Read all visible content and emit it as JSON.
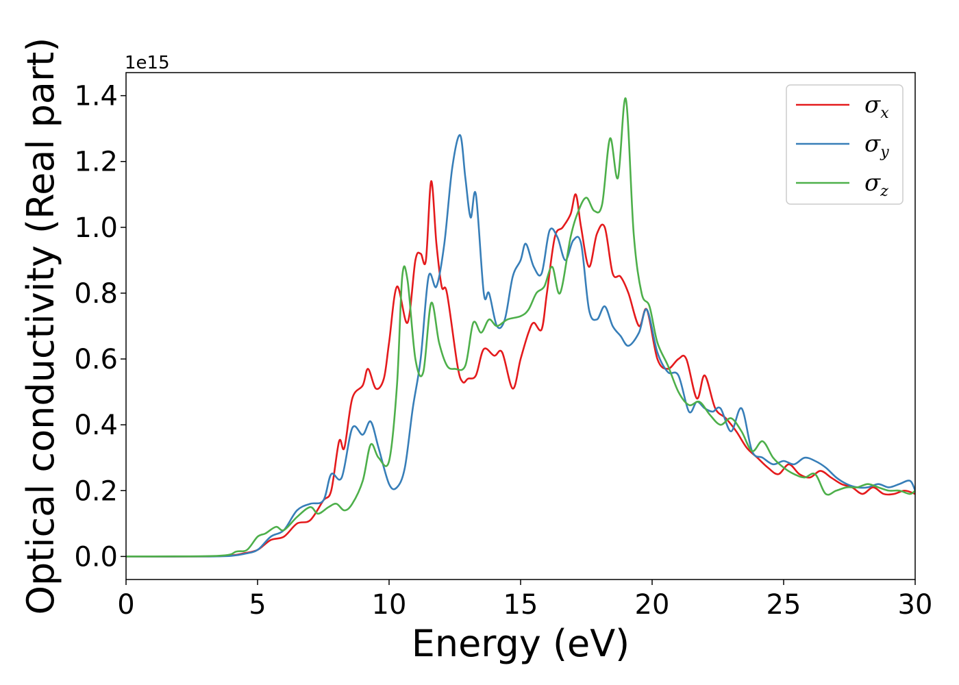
{
  "chart_data": {
    "type": "line",
    "xlabel": "Energy (eV)",
    "ylabel": "Optical conductivity (Real part)",
    "y_offset_label": "1e15",
    "xlim": [
      0,
      30
    ],
    "ylim": [
      -0.07,
      1.47
    ],
    "xticks": [
      0,
      5,
      10,
      15,
      20,
      25,
      30
    ],
    "xtick_labels": [
      "0",
      "5",
      "10",
      "15",
      "20",
      "25",
      "30"
    ],
    "yticks": [
      0.0,
      0.2,
      0.4,
      0.6,
      0.8,
      1.0,
      1.2,
      1.4
    ],
    "ytick_labels": [
      "0.0",
      "0.2",
      "0.4",
      "0.6",
      "0.8",
      "1.0",
      "1.2",
      "1.4"
    ],
    "grid": false,
    "legend_position": "top-right",
    "series": [
      {
        "name": "σx",
        "label_base": "σ",
        "label_sub": "x",
        "color": "#e41a1c",
        "points": [
          [
            0,
            0
          ],
          [
            3,
            0
          ],
          [
            4,
            0.003
          ],
          [
            4.5,
            0.01
          ],
          [
            5,
            0.02
          ],
          [
            5.5,
            0.05
          ],
          [
            6,
            0.06
          ],
          [
            6.5,
            0.1
          ],
          [
            7,
            0.11
          ],
          [
            7.5,
            0.17
          ],
          [
            7.8,
            0.2
          ],
          [
            8.1,
            0.35
          ],
          [
            8.3,
            0.33
          ],
          [
            8.6,
            0.48
          ],
          [
            9,
            0.52
          ],
          [
            9.2,
            0.57
          ],
          [
            9.5,
            0.51
          ],
          [
            9.8,
            0.54
          ],
          [
            10,
            0.65
          ],
          [
            10.3,
            0.82
          ],
          [
            10.7,
            0.71
          ],
          [
            11,
            0.9
          ],
          [
            11.2,
            0.92
          ],
          [
            11.4,
            0.9
          ],
          [
            11.6,
            1.14
          ],
          [
            11.8,
            0.95
          ],
          [
            12,
            0.82
          ],
          [
            12.2,
            0.8
          ],
          [
            12.6,
            0.58
          ],
          [
            12.8,
            0.53
          ],
          [
            13,
            0.54
          ],
          [
            13.3,
            0.55
          ],
          [
            13.6,
            0.63
          ],
          [
            14,
            0.61
          ],
          [
            14.3,
            0.62
          ],
          [
            14.7,
            0.51
          ],
          [
            15,
            0.6
          ],
          [
            15.3,
            0.68
          ],
          [
            15.5,
            0.71
          ],
          [
            15.8,
            0.69
          ],
          [
            16,
            0.8
          ],
          [
            16.3,
            0.97
          ],
          [
            16.6,
            1.0
          ],
          [
            16.9,
            1.04
          ],
          [
            17.1,
            1.1
          ],
          [
            17.3,
            1.0
          ],
          [
            17.6,
            0.88
          ],
          [
            17.9,
            0.98
          ],
          [
            18.2,
            1.0
          ],
          [
            18.5,
            0.86
          ],
          [
            18.8,
            0.85
          ],
          [
            19.1,
            0.8
          ],
          [
            19.5,
            0.7
          ],
          [
            19.8,
            0.75
          ],
          [
            20.2,
            0.6
          ],
          [
            20.6,
            0.57
          ],
          [
            21,
            0.6
          ],
          [
            21.3,
            0.6
          ],
          [
            21.7,
            0.48
          ],
          [
            22,
            0.55
          ],
          [
            22.4,
            0.45
          ],
          [
            22.8,
            0.42
          ],
          [
            23.2,
            0.38
          ],
          [
            23.6,
            0.33
          ],
          [
            24,
            0.3
          ],
          [
            24.4,
            0.27
          ],
          [
            24.8,
            0.25
          ],
          [
            25.2,
            0.28
          ],
          [
            25.6,
            0.25
          ],
          [
            26,
            0.24
          ],
          [
            26.4,
            0.26
          ],
          [
            26.8,
            0.24
          ],
          [
            27.2,
            0.22
          ],
          [
            27.6,
            0.21
          ],
          [
            28,
            0.19
          ],
          [
            28.4,
            0.21
          ],
          [
            28.8,
            0.19
          ],
          [
            29.2,
            0.19
          ],
          [
            29.6,
            0.2
          ],
          [
            30,
            0.19
          ]
        ]
      },
      {
        "name": "σy",
        "label_base": "σ",
        "label_sub": "y",
        "color": "#377eb8",
        "points": [
          [
            0,
            0
          ],
          [
            3,
            0
          ],
          [
            4,
            0.002
          ],
          [
            4.5,
            0.008
          ],
          [
            5,
            0.02
          ],
          [
            5.5,
            0.06
          ],
          [
            6,
            0.08
          ],
          [
            6.5,
            0.14
          ],
          [
            7,
            0.16
          ],
          [
            7.5,
            0.17
          ],
          [
            7.8,
            0.25
          ],
          [
            8.2,
            0.24
          ],
          [
            8.6,
            0.39
          ],
          [
            9,
            0.37
          ],
          [
            9.3,
            0.41
          ],
          [
            9.6,
            0.33
          ],
          [
            10,
            0.22
          ],
          [
            10.3,
            0.21
          ],
          [
            10.6,
            0.27
          ],
          [
            10.9,
            0.45
          ],
          [
            11.2,
            0.6
          ],
          [
            11.5,
            0.85
          ],
          [
            11.8,
            0.82
          ],
          [
            12.1,
            0.95
          ],
          [
            12.4,
            1.18
          ],
          [
            12.7,
            1.28
          ],
          [
            12.9,
            1.15
          ],
          [
            13.1,
            1.03
          ],
          [
            13.3,
            1.1
          ],
          [
            13.6,
            0.8
          ],
          [
            13.8,
            0.8
          ],
          [
            14.1,
            0.7
          ],
          [
            14.4,
            0.72
          ],
          [
            14.7,
            0.85
          ],
          [
            15,
            0.9
          ],
          [
            15.2,
            0.95
          ],
          [
            15.5,
            0.88
          ],
          [
            15.8,
            0.86
          ],
          [
            16.1,
            0.99
          ],
          [
            16.4,
            0.97
          ],
          [
            16.7,
            0.9
          ],
          [
            17,
            0.96
          ],
          [
            17.3,
            0.95
          ],
          [
            17.6,
            0.75
          ],
          [
            17.9,
            0.72
          ],
          [
            18.2,
            0.76
          ],
          [
            18.5,
            0.7
          ],
          [
            18.8,
            0.67
          ],
          [
            19.1,
            0.64
          ],
          [
            19.5,
            0.68
          ],
          [
            19.8,
            0.75
          ],
          [
            20.2,
            0.62
          ],
          [
            20.6,
            0.56
          ],
          [
            21,
            0.55
          ],
          [
            21.4,
            0.44
          ],
          [
            21.7,
            0.47
          ],
          [
            22,
            0.45
          ],
          [
            22.3,
            0.44
          ],
          [
            22.6,
            0.45
          ],
          [
            23,
            0.38
          ],
          [
            23.4,
            0.45
          ],
          [
            23.8,
            0.32
          ],
          [
            24.2,
            0.3
          ],
          [
            24.6,
            0.28
          ],
          [
            25,
            0.29
          ],
          [
            25.4,
            0.28
          ],
          [
            25.8,
            0.3
          ],
          [
            26.2,
            0.29
          ],
          [
            26.6,
            0.27
          ],
          [
            27,
            0.24
          ],
          [
            27.4,
            0.22
          ],
          [
            27.8,
            0.21
          ],
          [
            28.2,
            0.21
          ],
          [
            28.6,
            0.22
          ],
          [
            29,
            0.21
          ],
          [
            29.4,
            0.22
          ],
          [
            29.8,
            0.23
          ],
          [
            30,
            0.2
          ]
        ]
      },
      {
        "name": "σz",
        "label_base": "σ",
        "label_sub": "z",
        "color": "#4daf4a",
        "points": [
          [
            0,
            0
          ],
          [
            3.5,
            0.002
          ],
          [
            4.2,
            0.015
          ],
          [
            4.6,
            0.02
          ],
          [
            5,
            0.06
          ],
          [
            5.3,
            0.07
          ],
          [
            5.7,
            0.09
          ],
          [
            6,
            0.08
          ],
          [
            6.5,
            0.12
          ],
          [
            7,
            0.15
          ],
          [
            7.3,
            0.13
          ],
          [
            7.7,
            0.15
          ],
          [
            8,
            0.16
          ],
          [
            8.3,
            0.14
          ],
          [
            8.6,
            0.16
          ],
          [
            9,
            0.23
          ],
          [
            9.3,
            0.34
          ],
          [
            9.6,
            0.3
          ],
          [
            10,
            0.29
          ],
          [
            10.3,
            0.52
          ],
          [
            10.5,
            0.85
          ],
          [
            10.7,
            0.84
          ],
          [
            11,
            0.6
          ],
          [
            11.3,
            0.56
          ],
          [
            11.6,
            0.77
          ],
          [
            11.9,
            0.65
          ],
          [
            12.2,
            0.58
          ],
          [
            12.5,
            0.57
          ],
          [
            12.9,
            0.58
          ],
          [
            13.2,
            0.71
          ],
          [
            13.5,
            0.68
          ],
          [
            13.8,
            0.72
          ],
          [
            14.1,
            0.7
          ],
          [
            14.5,
            0.72
          ],
          [
            15,
            0.73
          ],
          [
            15.3,
            0.75
          ],
          [
            15.6,
            0.8
          ],
          [
            15.9,
            0.82
          ],
          [
            16.2,
            0.88
          ],
          [
            16.5,
            0.8
          ],
          [
            16.9,
            0.97
          ],
          [
            17.2,
            1.05
          ],
          [
            17.5,
            1.09
          ],
          [
            17.8,
            1.05
          ],
          [
            18.1,
            1.07
          ],
          [
            18.4,
            1.27
          ],
          [
            18.7,
            1.15
          ],
          [
            19,
            1.39
          ],
          [
            19.3,
            0.98
          ],
          [
            19.6,
            0.8
          ],
          [
            19.9,
            0.76
          ],
          [
            20.2,
            0.65
          ],
          [
            20.6,
            0.58
          ],
          [
            21,
            0.5
          ],
          [
            21.4,
            0.46
          ],
          [
            21.8,
            0.47
          ],
          [
            22.2,
            0.43
          ],
          [
            22.6,
            0.4
          ],
          [
            23,
            0.42
          ],
          [
            23.4,
            0.38
          ],
          [
            23.8,
            0.32
          ],
          [
            24.2,
            0.35
          ],
          [
            24.6,
            0.3
          ],
          [
            25,
            0.27
          ],
          [
            25.4,
            0.25
          ],
          [
            25.8,
            0.24
          ],
          [
            26.2,
            0.25
          ],
          [
            26.6,
            0.19
          ],
          [
            27,
            0.2
          ],
          [
            27.4,
            0.21
          ],
          [
            27.8,
            0.21
          ],
          [
            28.2,
            0.22
          ],
          [
            28.6,
            0.21
          ],
          [
            29,
            0.2
          ],
          [
            29.4,
            0.2
          ],
          [
            29.8,
            0.19
          ],
          [
            30,
            0.2
          ]
        ]
      }
    ]
  }
}
